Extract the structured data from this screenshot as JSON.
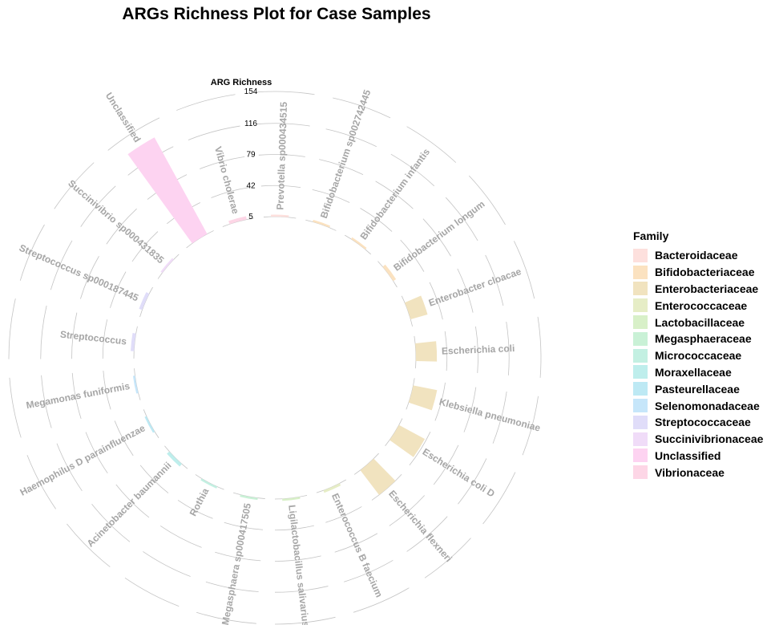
{
  "title": "ARGs Richness Plot for Case Samples",
  "chart_data": {
    "type": "bar",
    "coordinate_system": "polar",
    "title": "ARGs Richness Plot for Case Samples",
    "radial_axis": {
      "label": "ARG Richness",
      "ticks": [
        5,
        42,
        79,
        116,
        154
      ],
      "range": [
        5,
        154
      ]
    },
    "legend": {
      "title": "Family",
      "position": "right",
      "items": [
        {
          "label": "Bacteroidaceae",
          "color": "#FDE0DD"
        },
        {
          "label": "Bifidobacteriaceae",
          "color": "#FBE2C0"
        },
        {
          "label": "Enterobacteriaceae",
          "color": "#F1E3BF"
        },
        {
          "label": "Enterococcaceae",
          "color": "#E6EDC6"
        },
        {
          "label": "Lactobacillaceae",
          "color": "#D8F0C8"
        },
        {
          "label": "Megasphaeraceae",
          "color": "#C9F1D6"
        },
        {
          "label": "Micrococcaceae",
          "color": "#C3F0E2"
        },
        {
          "label": "Moraxellaceae",
          "color": "#BEEEEC"
        },
        {
          "label": "Pasteurellaceae",
          "color": "#BDE9F4"
        },
        {
          "label": "Selenomonadaceae",
          "color": "#C6E6FA"
        },
        {
          "label": "Streptococcaceae",
          "color": "#E0DDF9"
        },
        {
          "label": "Succinivibrionaceae",
          "color": "#F0DCF8"
        },
        {
          "label": "Unclassified",
          "color": "#FDD3F1"
        },
        {
          "label": "Vibrionaceae",
          "color": "#FDD6E6"
        }
      ]
    },
    "categories": [
      "Prevotella sp000434515",
      "Bifidobacterium sp002742445",
      "Bifidobacterium infantis",
      "Bifidobacterium longum",
      "Enterobacter cloacae",
      "Escherichia coli",
      "Klebsiella pneumoniae",
      "Escherichia coli D",
      "Escherichia flexneri",
      "Enterococcus B faecium",
      "Ligilactobacillus salivarius",
      "Megasphaera sp000417505",
      "Rothia",
      "Acinetobacter baumannii",
      "Haemophilus D parainfluenzae",
      "Megamonas funiformis",
      "Streptococcus",
      "Streptococcus sp000187445",
      "Succinivibrio sp000431835",
      "Unclassified",
      "Vibrio cholerae"
    ],
    "families": [
      "Bacteroidaceae",
      "Bifidobacteriaceae",
      "Bifidobacteriaceae",
      "Bifidobacteriaceae",
      "Enterobacteriaceae",
      "Enterobacteriaceae",
      "Enterobacteriaceae",
      "Enterobacteriaceae",
      "Enterobacteriaceae",
      "Enterococcaceae",
      "Lactobacillaceae",
      "Megasphaeraceae",
      "Micrococcaceae",
      "Moraxellaceae",
      "Pasteurellaceae",
      "Selenomonadaceae",
      "Streptococcaceae",
      "Streptococcaceae",
      "Succinivibrionaceae",
      "Unclassified",
      "Vibrionaceae"
    ],
    "values": [
      5,
      6,
      7,
      9,
      26,
      30,
      34,
      40,
      42,
      8,
      5,
      6,
      7,
      9,
      6,
      6,
      9,
      9,
      5,
      136,
      9
    ],
    "grid": true
  }
}
